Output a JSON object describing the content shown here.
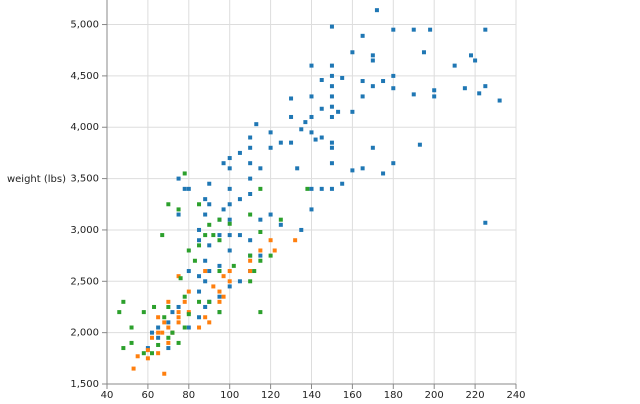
{
  "chart_data": {
    "type": "scatter",
    "y_label": "weight (lbs)",
    "xlim": [
      40,
      240
    ],
    "xticks": [
      40,
      60,
      80,
      100,
      120,
      140,
      160,
      180,
      200,
      220,
      240
    ],
    "ylim": [
      1500,
      5200
    ],
    "yticks": [
      {
        "value": 1500,
        "label": "1,500"
      },
      {
        "value": 2000,
        "label": "2,000"
      },
      {
        "value": 2500,
        "label": "2,500"
      },
      {
        "value": 3000,
        "label": "3,000"
      },
      {
        "value": 3500,
        "label": "3,500"
      },
      {
        "value": 4000,
        "label": "4,000"
      },
      {
        "value": 4500,
        "label": "4,500"
      },
      {
        "value": 5000,
        "label": "5,000"
      }
    ],
    "grid": true,
    "series": [
      {
        "color": "#1f77b4",
        "x": [
          150,
          172,
          180,
          190,
          198,
          225,
          165,
          140,
          150,
          160,
          170,
          170,
          195,
          210,
          218,
          220,
          232,
          225,
          222,
          215,
          200,
          200,
          190,
          180,
          175,
          170,
          180,
          165,
          165,
          155,
          150,
          145,
          150,
          150,
          150,
          145,
          140,
          140,
          150,
          153,
          160,
          130,
          130,
          137,
          135,
          140,
          145,
          150,
          142,
          130,
          125,
          120,
          113,
          110,
          110,
          105,
          100,
          100,
          97,
          100,
          110,
          115,
          120,
          170,
          180,
          175,
          165,
          160,
          155,
          145,
          150,
          140,
          140,
          133,
          150,
          150,
          193,
          225,
          110,
          105,
          110,
          100,
          97,
          95,
          90,
          88,
          85,
          85,
          90,
          95,
          100,
          105,
          110,
          115,
          120,
          88,
          78,
          75,
          80,
          75,
          90,
          100,
          100,
          95,
          90,
          88,
          85,
          90,
          95,
          100,
          105,
          110,
          85,
          80,
          88,
          75,
          85,
          72,
          70,
          72,
          65,
          62,
          65,
          60,
          70,
          88,
          95,
          80,
          110,
          115,
          125,
          135
        ],
        "values": [
          4980,
          5140,
          4950,
          4950,
          4950,
          4950,
          4890,
          4600,
          4600,
          4730,
          4700,
          4650,
          4730,
          4600,
          4700,
          4650,
          4260,
          4400,
          4330,
          4380,
          4300,
          4360,
          4320,
          4500,
          4450,
          4400,
          4380,
          4300,
          4450,
          4480,
          4500,
          4460,
          4400,
          4300,
          4200,
          4180,
          4300,
          4100,
          4100,
          4150,
          4150,
          4280,
          4100,
          4050,
          3980,
          3950,
          3900,
          3850,
          3880,
          3850,
          3850,
          3950,
          4030,
          3900,
          3800,
          3750,
          3700,
          3600,
          3650,
          3400,
          3650,
          3600,
          3800,
          3800,
          3650,
          3550,
          3600,
          3580,
          3450,
          3400,
          3400,
          3200,
          3400,
          3600,
          3650,
          3800,
          3830,
          3070,
          3500,
          3300,
          3350,
          3250,
          3200,
          3100,
          3250,
          3150,
          3000,
          2900,
          2850,
          2950,
          2800,
          2950,
          2900,
          3100,
          3150,
          3300,
          3400,
          3500,
          3400,
          3150,
          3450,
          3100,
          2950,
          2650,
          2600,
          2500,
          2400,
          2300,
          2350,
          2450,
          2500,
          2600,
          2550,
          2600,
          2700,
          2250,
          2150,
          2200,
          2100,
          2000,
          2050,
          2000,
          1950,
          1850,
          1850,
          2250,
          2200,
          2050,
          2750,
          2750,
          3050,
          3000
        ]
      },
      {
        "color": "#ff7f0e",
        "x": [
          53,
          68,
          65,
          55,
          60,
          65,
          67,
          70,
          72,
          75,
          75,
          80,
          88,
          90,
          85,
          95,
          97,
          95,
          100,
          92,
          97,
          100,
          110,
          110,
          115,
          120,
          132,
          122,
          75,
          80,
          78,
          68,
          65,
          70,
          62,
          60,
          88,
          75,
          70
        ],
        "values": [
          1650,
          1600,
          1800,
          1770,
          1830,
          2000,
          2000,
          2050,
          2000,
          2100,
          2150,
          2200,
          2150,
          2100,
          2050,
          2300,
          2350,
          2400,
          2500,
          2450,
          2550,
          2600,
          2600,
          2700,
          2800,
          2900,
          2900,
          2800,
          2200,
          2400,
          2300,
          2100,
          2150,
          1900,
          1950,
          1750,
          2600,
          2550,
          2300
        ]
      },
      {
        "color": "#2ca02c",
        "x": [
          48,
          46,
          52,
          48,
          52,
          58,
          62,
          65,
          70,
          72,
          75,
          68,
          70,
          78,
          80,
          85,
          90,
          95,
          102,
          110,
          112,
          115,
          120,
          110,
          115,
          125,
          138,
          78,
          70,
          75,
          85,
          95,
          90,
          92,
          95,
          115,
          115,
          88,
          78,
          80,
          85,
          67,
          63,
          58,
          76,
          83,
          95,
          110,
          100
        ],
        "values": [
          2300,
          2200,
          2050,
          1850,
          1900,
          1800,
          1800,
          1880,
          1950,
          2000,
          1900,
          2150,
          2250,
          2050,
          2180,
          2300,
          2300,
          2200,
          2650,
          2750,
          2600,
          2700,
          2750,
          2500,
          2200,
          3100,
          3400,
          3550,
          3250,
          3200,
          3250,
          3100,
          3050,
          2950,
          2900,
          2980,
          3400,
          2950,
          2350,
          2800,
          2850,
          2950,
          2250,
          2200,
          2530,
          2700,
          2600,
          3150,
          3060
        ]
      }
    ]
  }
}
